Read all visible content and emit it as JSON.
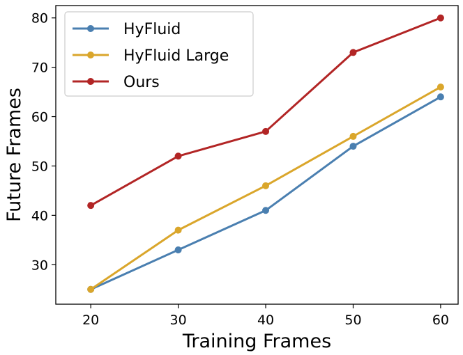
{
  "chart_data": {
    "type": "line",
    "title": "",
    "xlabel": "Training Frames",
    "ylabel": "Future Frames",
    "x": [
      20,
      30,
      40,
      50,
      60
    ],
    "xticks": [
      "20",
      "30",
      "40",
      "50",
      "60"
    ],
    "yticks": [
      "30",
      "40",
      "50",
      "60",
      "70",
      "80"
    ],
    "ytick_values": [
      30,
      40,
      50,
      60,
      70,
      80
    ],
    "xlim": [
      16,
      62
    ],
    "ylim": [
      22,
      82.5
    ],
    "grid": false,
    "legend_position": "top-left",
    "series": [
      {
        "name": "HyFluid",
        "color": "#4a7fb0",
        "values": [
          25,
          33,
          41,
          54,
          64
        ]
      },
      {
        "name": "HyFluid Large",
        "color": "#daa62b",
        "values": [
          25,
          37,
          46,
          56,
          66
        ]
      },
      {
        "name": "Ours",
        "color": "#b22525",
        "values": [
          42,
          52,
          57,
          73,
          80
        ]
      }
    ]
  }
}
